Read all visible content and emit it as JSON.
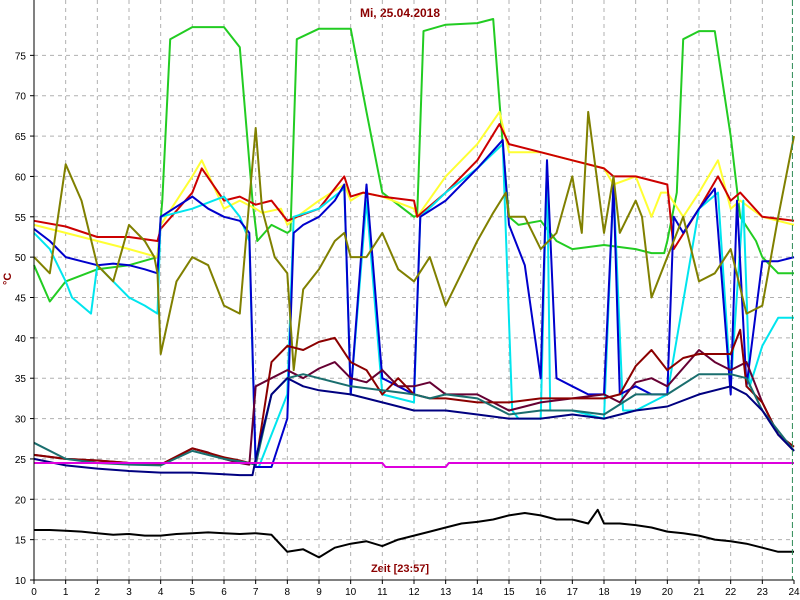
{
  "chart_data": {
    "type": "line",
    "title": "Mi, 25.04.2018",
    "xlabel": "Zeit [23:57]",
    "ylabel": "°C",
    "xlim": [
      0,
      24
    ],
    "ylim": [
      10,
      80
    ],
    "xticks": [
      "0",
      "1",
      "2",
      "3",
      "4",
      "5",
      "6",
      "7",
      "8",
      "9",
      "10",
      "11",
      "12",
      "13",
      "14",
      "15",
      "16",
      "17",
      "18",
      "19",
      "20",
      "21",
      "22",
      "23",
      "24"
    ],
    "yticks": [
      "10",
      "15",
      "20",
      "25",
      "30",
      "35",
      "40",
      "45",
      "50",
      "55",
      "60",
      "65",
      "70",
      "75"
    ],
    "grid": true,
    "colors": {
      "grid": "#b0b0b0",
      "axis": "#000000",
      "ticklabel": "#000000",
      "title": "#8b0000",
      "current_time_marker": "#2e8b57"
    },
    "current_time_marker_x": 23.95,
    "series": [
      {
        "color": "#22cc22",
        "x": [
          0,
          0.5,
          1,
          2,
          3,
          3.9,
          4.05,
          4.3,
          5,
          6,
          6.5,
          6.9,
          7.05,
          7.5,
          8,
          8.1,
          8.3,
          9,
          10,
          10.5,
          11,
          12,
          12.1,
          12.3,
          13,
          14,
          14.5,
          14.8,
          15,
          15.3,
          16,
          16.5,
          17,
          18,
          19,
          19.5,
          19.9,
          20,
          20.3,
          20.5,
          21,
          21.5,
          22,
          22.3,
          22.8,
          23,
          23.5,
          24
        ],
        "y": [
          49,
          44.5,
          47,
          48.5,
          49,
          50,
          57,
          77,
          78.5,
          78.5,
          76,
          57,
          52,
          54,
          53,
          53.3,
          77,
          78.3,
          78.3,
          68,
          58,
          55,
          55.2,
          78,
          78.8,
          79,
          79.5,
          64,
          55,
          54,
          54.5,
          52,
          51,
          51.5,
          51,
          50.5,
          50.5,
          52,
          58,
          77,
          78,
          78,
          65,
          55,
          52,
          50,
          48,
          48
        ]
      },
      {
        "color": "#ffff33",
        "x": [
          0,
          1,
          2,
          3,
          3.9,
          4,
          5,
          5.3,
          6,
          6.5,
          7,
          7.2,
          7.8,
          8,
          8.3,
          9,
          9.8,
          10,
          10.4,
          11,
          12,
          12.1,
          13,
          14,
          14.7,
          15,
          16,
          17,
          18,
          18.3,
          19,
          19.5,
          19.8,
          20,
          20.5,
          21,
          21.6,
          22,
          22.3,
          23,
          24
        ],
        "y": [
          54,
          53,
          52,
          51,
          50,
          54,
          60,
          62,
          56,
          57,
          56,
          55.5,
          56,
          54,
          55,
          57,
          59,
          57,
          58,
          57.5,
          56,
          55,
          60,
          64,
          68,
          63,
          63,
          62,
          61,
          59,
          60,
          55,
          58,
          58,
          55,
          58,
          62,
          56,
          57,
          55,
          54
        ]
      },
      {
        "color": "#cc0000",
        "x": [
          0,
          1,
          2,
          3,
          3.9,
          4,
          5,
          5.3,
          6,
          6.5,
          7,
          7.5,
          8,
          8.3,
          9,
          9.8,
          10,
          10.4,
          11,
          12,
          12.1,
          13,
          14,
          14.7,
          15,
          16,
          17,
          18,
          18.3,
          19,
          20,
          20.2,
          21,
          21.6,
          22,
          22.3,
          23,
          24
        ],
        "y": [
          54.5,
          53.8,
          52.5,
          52.5,
          52,
          53.5,
          58,
          61,
          57,
          57.5,
          56.5,
          57,
          54.5,
          55,
          56,
          60,
          57.5,
          58,
          57.5,
          57,
          55,
          58,
          62,
          66.5,
          64,
          63,
          62,
          61,
          60,
          60,
          59,
          51,
          56,
          60,
          57,
          58,
          55,
          54.5
        ]
      },
      {
        "color": "#00e5ee",
        "x": [
          0,
          0.5,
          1,
          1.2,
          1.8,
          2,
          2.5,
          3,
          3.5,
          3.9,
          4,
          5,
          6,
          6.5,
          6.8,
          7,
          7.1,
          8,
          8.2,
          9,
          9.8,
          10,
          10.5,
          11,
          12,
          12.2,
          13,
          14,
          14.8,
          15.1,
          15.3,
          15.6,
          16,
          16.2,
          16.3,
          17,
          18,
          18.3,
          18.6,
          19,
          20,
          21,
          21.6,
          22,
          22.4,
          22.6,
          23,
          23.5,
          24
        ],
        "y": [
          53,
          51,
          47,
          45,
          43,
          49,
          47,
          45,
          44,
          43,
          55,
          56,
          57.5,
          55,
          52,
          24,
          24,
          33,
          55,
          56,
          58.5,
          33,
          57,
          33,
          32,
          55,
          58,
          61,
          64,
          31,
          30,
          30,
          30,
          62,
          31,
          31,
          30,
          59,
          31,
          31,
          33,
          56,
          58,
          34,
          57,
          34,
          39,
          42.5,
          42.5
        ]
      },
      {
        "color": "#0000cc",
        "x": [
          0,
          0.5,
          1,
          1.5,
          2,
          2.5,
          3,
          3.5,
          3.9,
          4,
          5,
          5.5,
          6,
          6.5,
          6.8,
          7,
          7.5,
          8,
          8.2,
          8.5,
          9,
          9.5,
          9.8,
          10,
          10.5,
          11,
          11.5,
          12,
          12.2,
          13,
          14,
          14.8,
          15,
          15.5,
          16,
          16.2,
          16.5,
          17,
          17.5,
          18,
          18.3,
          18.5,
          19,
          19.5,
          20,
          20.2,
          20.5,
          21,
          21.5,
          22,
          22.2,
          22.5,
          23,
          23.5,
          24
        ],
        "y": [
          53.5,
          52,
          50,
          49.5,
          49,
          49.2,
          49,
          48.5,
          48,
          55,
          57.5,
          56,
          55,
          54.5,
          53,
          24,
          24,
          30,
          53,
          54,
          55,
          57,
          59,
          33,
          59,
          35,
          34,
          33,
          55,
          57,
          61,
          64.5,
          54,
          49,
          35,
          62,
          35,
          34,
          33,
          33,
          59,
          33,
          34,
          33,
          33,
          55,
          53,
          56,
          58.5,
          33,
          57,
          34,
          49.5,
          49.5,
          50
        ]
      },
      {
        "color": "#808000",
        "x": [
          0,
          0.5,
          1,
          1.5,
          2,
          2.5,
          3,
          3.5,
          3.8,
          3.9,
          4,
          4.5,
          5,
          5.5,
          6,
          6.5,
          6.8,
          7,
          7.2,
          7.6,
          8,
          8.2,
          8.5,
          9,
          9.5,
          9.8,
          10,
          10.5,
          11,
          11.5,
          12,
          12.5,
          13,
          13.5,
          14,
          14.5,
          14.9,
          15,
          15.5,
          16,
          16.5,
          17,
          17.3,
          17.5,
          18,
          18.3,
          18.5,
          19,
          19.2,
          19.5,
          20,
          20.5,
          21,
          21.5,
          22,
          22.5,
          23,
          23.5,
          24
        ],
        "y": [
          50,
          48,
          61.5,
          57,
          49,
          47,
          54,
          52,
          50,
          48,
          38,
          47,
          50,
          49,
          44,
          43,
          57,
          66,
          56,
          50,
          48,
          36,
          46,
          48.5,
          52,
          53,
          50,
          50,
          53,
          48.5,
          47,
          50,
          44,
          48,
          52,
          55.5,
          58,
          55,
          55,
          51,
          53,
          60,
          53,
          68,
          53,
          60,
          53,
          57,
          55,
          45,
          50,
          55,
          47,
          48,
          51,
          43,
          44,
          55,
          65
        ]
      },
      {
        "color": "#660033",
        "x": [
          0,
          1,
          2,
          3,
          4,
          5,
          5.5,
          6,
          6.5,
          6.8,
          7,
          7.5,
          8,
          8.5,
          9,
          9.5,
          10,
          10.5,
          11,
          11.5,
          12,
          12.5,
          13,
          14,
          15,
          15.5,
          16,
          17,
          18,
          18.5,
          19,
          19.5,
          20,
          21,
          21.5,
          22,
          22.5,
          23,
          23.5,
          24
        ],
        "y": [
          25.5,
          25,
          24.8,
          24.5,
          24.3,
          26.3,
          25.8,
          25,
          24.5,
          24.3,
          34,
          35,
          36,
          35,
          36.2,
          37,
          35,
          34.5,
          36,
          34,
          34,
          34.5,
          33,
          33,
          31,
          31.5,
          32,
          32.5,
          33,
          32,
          34.5,
          35,
          34,
          38.5,
          37,
          36,
          37,
          32,
          28,
          26
        ]
      },
      {
        "color": "#8b0000",
        "x": [
          0,
          1,
          2,
          3,
          4,
          5,
          6,
          6.5,
          6.8,
          7,
          7.5,
          8,
          8.5,
          9,
          9.5,
          10,
          10.5,
          11,
          11.5,
          12,
          12.5,
          13,
          14,
          15,
          16,
          17,
          18,
          18.5,
          19,
          19.5,
          20,
          20.5,
          21,
          21.5,
          22,
          22.3,
          22.5,
          23,
          23.5,
          24
        ],
        "y": [
          25.5,
          25,
          24.8,
          24.5,
          24.3,
          26.3,
          25.2,
          24.8,
          24.5,
          24.3,
          37,
          39,
          38.5,
          39.5,
          40,
          37,
          36,
          33,
          35,
          33,
          32.5,
          32.5,
          32,
          32,
          32.5,
          32.5,
          32.5,
          33,
          36.5,
          38.5,
          36,
          37.5,
          38,
          38,
          38,
          41,
          34,
          32,
          28,
          26.5
        ]
      },
      {
        "color": "#1a6e6e",
        "x": [
          0,
          1,
          2,
          3,
          4,
          5,
          6,
          6.5,
          6.8,
          7,
          7.5,
          8,
          8.5,
          9,
          10,
          11,
          12,
          12.5,
          13,
          14,
          15,
          16,
          17,
          18,
          19,
          19.5,
          20,
          21,
          22,
          22.5,
          23,
          23.5,
          24
        ],
        "y": [
          27,
          25,
          24.5,
          24.3,
          24.2,
          26,
          25,
          24.7,
          24.5,
          24.3,
          33,
          35,
          35.5,
          35,
          34,
          33.5,
          33,
          32.5,
          33,
          32.5,
          30.5,
          31,
          31,
          30.5,
          33,
          33,
          33,
          35.5,
          35.5,
          35,
          31,
          28.5,
          26
        ]
      },
      {
        "color": "#000080",
        "x": [
          0,
          1,
          2,
          3,
          4,
          5,
          6,
          6.5,
          6.8,
          6.9,
          7,
          7.5,
          8,
          8.5,
          9,
          10,
          11,
          12,
          13,
          14,
          15,
          16,
          17,
          18,
          19,
          20,
          21,
          22,
          22.5,
          23,
          23.5,
          24
        ],
        "y": [
          25,
          24.2,
          23.8,
          23.5,
          23.3,
          23.3,
          23.1,
          23,
          23,
          23,
          25,
          33,
          35,
          34,
          33.5,
          33,
          32,
          31,
          31,
          30.5,
          30,
          30,
          30.5,
          30,
          31,
          31.5,
          33,
          34,
          33,
          31,
          28,
          26
        ]
      },
      {
        "color": "#dd00dd",
        "x": [
          0,
          7,
          7.05,
          11,
          11.1,
          13,
          13.1,
          24
        ],
        "y": [
          24.5,
          24.5,
          24.5,
          24.5,
          24,
          24,
          24.5,
          24.5
        ]
      },
      {
        "color": "#000000",
        "x": [
          0,
          0.5,
          1,
          1.5,
          2,
          2.5,
          3,
          3.5,
          4,
          4.5,
          5,
          5.5,
          6,
          6.5,
          7,
          7.5,
          8,
          8.5,
          9,
          9.5,
          10,
          10.5,
          11,
          11.5,
          12,
          12.5,
          13,
          13.5,
          14,
          14.5,
          15,
          15.5,
          16,
          16.5,
          17,
          17.5,
          17.8,
          18,
          18.5,
          19,
          19.5,
          20,
          20.5,
          21,
          21.5,
          22,
          22.5,
          23,
          23.5,
          24
        ],
        "y": [
          16.2,
          16.2,
          16.1,
          16,
          15.8,
          15.6,
          15.7,
          15.5,
          15.5,
          15.7,
          15.8,
          15.9,
          15.8,
          15.7,
          15.8,
          15.6,
          13.5,
          13.8,
          12.8,
          14,
          14.5,
          14.8,
          14.2,
          15,
          15.5,
          16,
          16.5,
          17,
          17.2,
          17.5,
          18,
          18.3,
          18,
          17.5,
          17.5,
          17,
          18.7,
          17,
          17,
          16.8,
          16.5,
          16,
          15.8,
          15.5,
          15,
          14.8,
          14.5,
          14,
          13.5,
          13.5
        ]
      }
    ]
  }
}
